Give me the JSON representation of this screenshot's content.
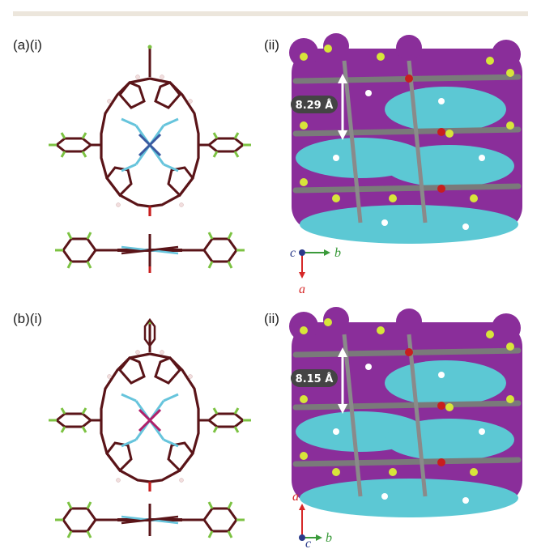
{
  "panel_labels": {
    "a_i": "(a)(i)",
    "a_ii": "(ii)",
    "b_i": "(b)(i)",
    "b_ii": "(ii)"
  },
  "distances": {
    "a": "8.29 Å",
    "b": "8.15 Å"
  },
  "axes_a": {
    "c": "c",
    "b": "b",
    "a": "a"
  },
  "axes_b": {
    "a": "a",
    "b": "b",
    "c": "c"
  },
  "colors": {
    "bond": "#5a1418",
    "fluorine": "#7cc242",
    "nitrogen": "#66c4dc",
    "oxygen": "#c81e1e",
    "hydrogen": "#f2dede",
    "metal_a": "#3a5aa0",
    "metal_b": "#b0206a",
    "purple_surface": "#8a2e9a",
    "cyan_surface": "#5cc8d4",
    "axis_a": "#d62828",
    "axis_b": "#3a9a3a",
    "axis_c": "#2a3a8a"
  }
}
